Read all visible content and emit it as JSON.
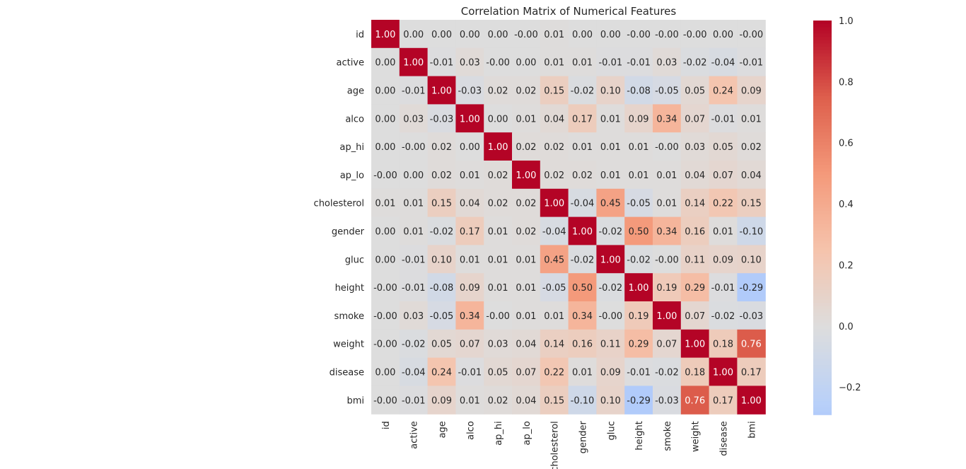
{
  "chart_data": {
    "type": "heatmap",
    "title": "Correlation Matrix of Numerical Features",
    "labels": [
      "id",
      "active",
      "age",
      "alco",
      "ap_hi",
      "ap_lo",
      "cholesterol",
      "gender",
      "gluc",
      "height",
      "smoke",
      "weight",
      "disease",
      "bmi"
    ],
    "matrix": [
      [
        1.0,
        0.0,
        0.0,
        0.0,
        0.0,
        -0.0,
        0.01,
        0.0,
        0.0,
        -0.0,
        -0.0,
        -0.0,
        0.0,
        -0.0
      ],
      [
        0.0,
        1.0,
        -0.01,
        0.03,
        -0.0,
        0.0,
        0.01,
        0.01,
        -0.01,
        -0.01,
        0.03,
        -0.02,
        -0.04,
        -0.01
      ],
      [
        0.0,
        -0.01,
        1.0,
        -0.03,
        0.02,
        0.02,
        0.15,
        -0.02,
        0.1,
        -0.08,
        -0.05,
        0.05,
        0.24,
        0.09
      ],
      [
        0.0,
        0.03,
        -0.03,
        1.0,
        0.0,
        0.01,
        0.04,
        0.17,
        0.01,
        0.09,
        0.34,
        0.07,
        -0.01,
        0.01
      ],
      [
        0.0,
        -0.0,
        0.02,
        0.0,
        1.0,
        0.02,
        0.02,
        0.01,
        0.01,
        0.01,
        -0.0,
        0.03,
        0.05,
        0.02
      ],
      [
        -0.0,
        0.0,
        0.02,
        0.01,
        0.02,
        1.0,
        0.02,
        0.02,
        0.01,
        0.01,
        0.01,
        0.04,
        0.07,
        0.04
      ],
      [
        0.01,
        0.01,
        0.15,
        0.04,
        0.02,
        0.02,
        1.0,
        -0.04,
        0.45,
        -0.05,
        0.01,
        0.14,
        0.22,
        0.15
      ],
      [
        0.0,
        0.01,
        -0.02,
        0.17,
        0.01,
        0.02,
        -0.04,
        1.0,
        -0.02,
        0.5,
        0.34,
        0.16,
        0.01,
        -0.1
      ],
      [
        0.0,
        -0.01,
        0.1,
        0.01,
        0.01,
        0.01,
        0.45,
        -0.02,
        1.0,
        -0.02,
        -0.0,
        0.11,
        0.09,
        0.1
      ],
      [
        -0.0,
        -0.01,
        -0.08,
        0.09,
        0.01,
        0.01,
        -0.05,
        0.5,
        -0.02,
        1.0,
        0.19,
        0.29,
        -0.01,
        -0.29
      ],
      [
        -0.0,
        0.03,
        -0.05,
        0.34,
        -0.0,
        0.01,
        0.01,
        0.34,
        -0.0,
        0.19,
        1.0,
        0.07,
        -0.02,
        -0.03
      ],
      [
        -0.0,
        -0.02,
        0.05,
        0.07,
        0.03,
        0.04,
        0.14,
        0.16,
        0.11,
        0.29,
        0.07,
        1.0,
        0.18,
        0.76
      ],
      [
        0.0,
        -0.04,
        0.24,
        -0.01,
        0.05,
        0.07,
        0.22,
        0.01,
        0.09,
        -0.01,
        -0.02,
        0.18,
        1.0,
        0.17
      ],
      [
        -0.0,
        -0.01,
        0.09,
        0.01,
        0.02,
        0.04,
        0.15,
        -0.1,
        0.1,
        -0.29,
        -0.03,
        0.76,
        0.17,
        1.0
      ]
    ],
    "colormap": "coolwarm",
    "center": 0,
    "vmin": -0.29,
    "vmax": 1.0,
    "colorbar_ticks": [
      "1.0",
      "0.8",
      "0.6",
      "0.4",
      "0.2",
      "0.0",
      "−0.2"
    ],
    "colorbar_tick_values": [
      1.0,
      0.8,
      0.6,
      0.4,
      0.2,
      0.0,
      -0.2
    ],
    "annotation_format": "2 decimals",
    "grid": false
  }
}
